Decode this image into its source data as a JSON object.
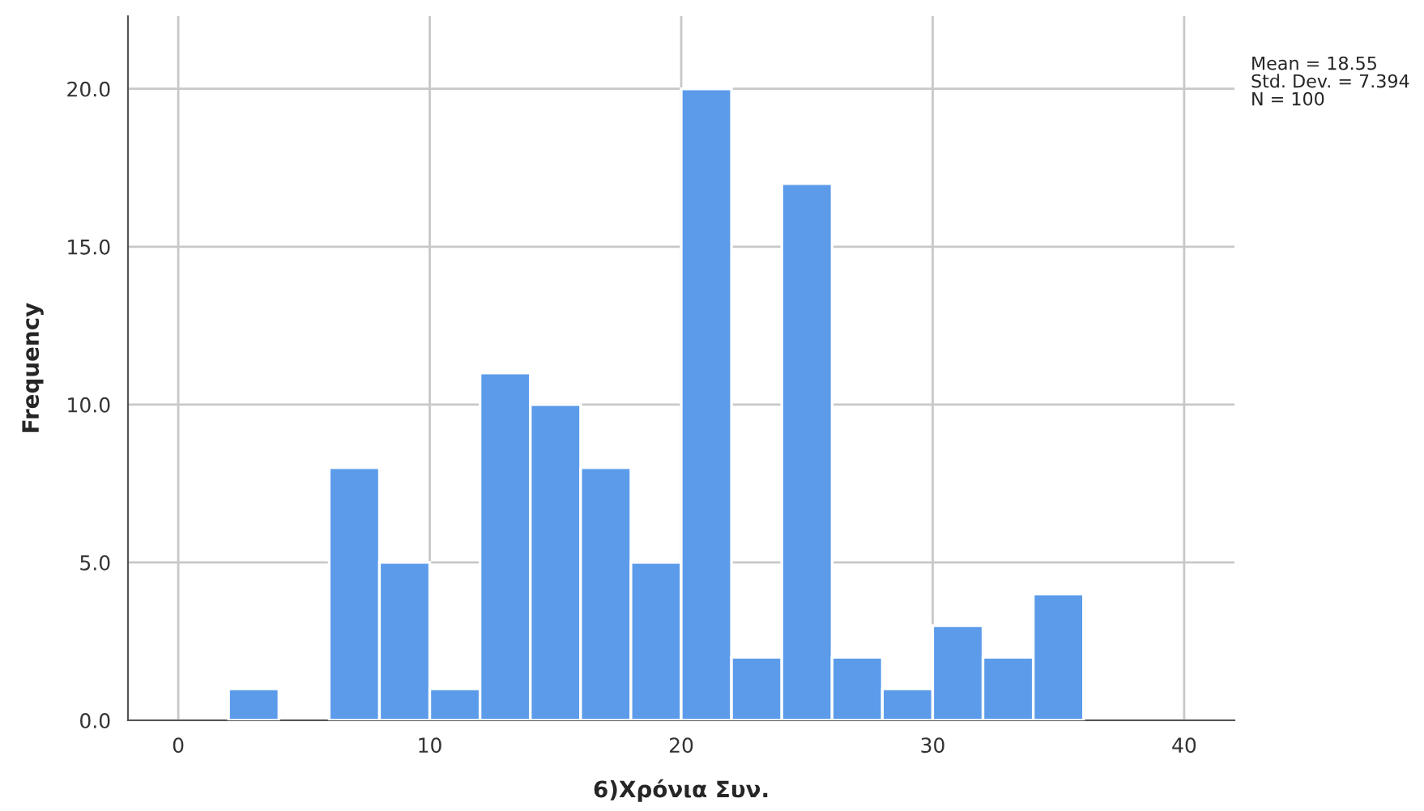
{
  "chart_data": {
    "type": "histogram",
    "xlabel": "6)Χρόνια Συν.",
    "ylabel": "Frequency",
    "bins": [
      2,
      4,
      6,
      8,
      10,
      12,
      14,
      16,
      18,
      20,
      22,
      24,
      26,
      28,
      30,
      32,
      34,
      36
    ],
    "values": [
      1,
      0,
      8,
      5,
      1,
      11,
      10,
      8,
      5,
      20,
      2,
      17,
      2,
      1,
      3,
      2,
      4
    ],
    "color": "#5b9bea",
    "xlim": [
      -2,
      42
    ],
    "xticks": [
      0,
      10,
      20,
      30,
      40
    ],
    "ylim": [
      0,
      22.3
    ],
    "yticks": [
      {
        "value": 0,
        "label": "0.0"
      },
      {
        "value": 5,
        "label": "5.0"
      },
      {
        "value": 10,
        "label": "10.0"
      },
      {
        "value": 15,
        "label": "15.0"
      },
      {
        "value": 20,
        "label": "20.0"
      }
    ],
    "grid": true,
    "annotations": [
      "Mean = 18.55",
      "Std. Dev. = 7.394",
      "N = 100"
    ]
  }
}
